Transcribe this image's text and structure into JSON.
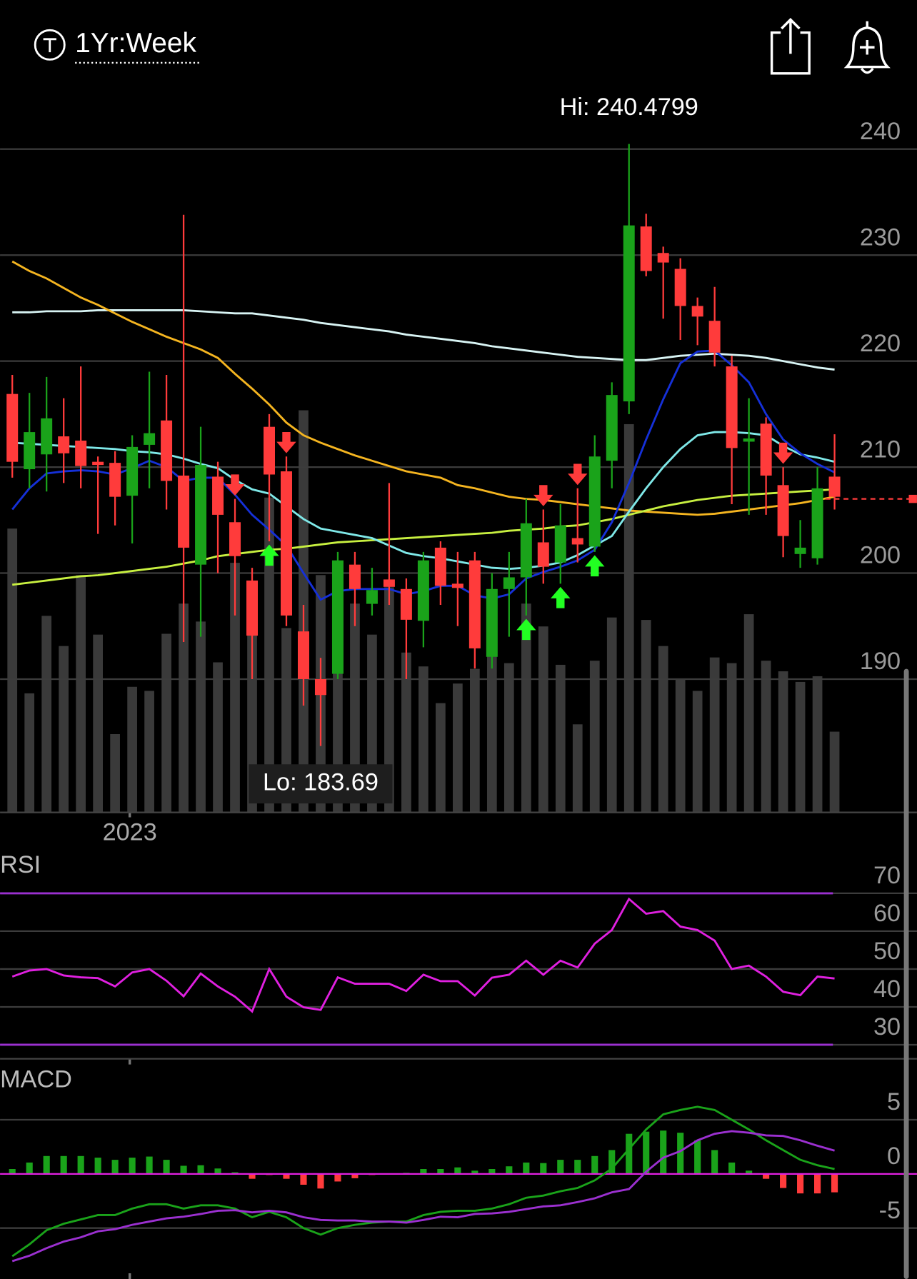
{
  "header": {
    "title": "1Yr:Week"
  },
  "chart_data": [
    {
      "type": "candlestick",
      "categories": [
        null,
        null,
        null,
        null,
        null,
        null,
        null,
        "2023",
        null,
        null,
        null,
        null,
        null,
        null,
        null,
        null,
        null,
        null,
        null,
        null,
        null,
        null,
        null,
        null,
        null,
        null,
        null,
        null,
        null,
        null,
        null,
        null,
        null,
        null,
        null,
        null,
        null,
        null,
        null,
        null,
        null,
        null,
        null,
        null,
        null,
        null,
        null,
        null,
        null
      ],
      "open": [
        216.9,
        209.8,
        211.2,
        212.9,
        212.5,
        210.5,
        210.4,
        207.3,
        212.1,
        214.4,
        209.2,
        200.8,
        209.1,
        204.8,
        199.3,
        213.8,
        209.6,
        194.5,
        190,
        190.5,
        200.8,
        197.1,
        199.4,
        198.5,
        195.5,
        202.4,
        199,
        201.2,
        192.1,
        198.5,
        199.6,
        202.9,
        201,
        203.3,
        202.5,
        210.6,
        216.2,
        232.7,
        230.2,
        228.7,
        225.2,
        223.8,
        219.5,
        212.4,
        214.1,
        208.3,
        201.8,
        201.4,
        209.1
      ],
      "high": [
        218.7,
        217,
        218.5,
        216.5,
        219.5,
        211,
        211.5,
        213,
        219,
        218.7,
        233.8,
        213.8,
        210.5,
        207,
        200.5,
        215,
        211,
        197,
        192,
        202,
        202,
        200.5,
        208.5,
        199.5,
        202,
        203,
        202,
        202,
        200,
        202,
        207,
        206,
        206.5,
        208,
        213,
        218,
        240.4799,
        233.9,
        230.8,
        229.7,
        226,
        227,
        220.5,
        216.5,
        214.7,
        210,
        205,
        210,
        213.1
      ],
      "low": [
        209,
        208,
        207.7,
        208.5,
        208,
        203.7,
        204.5,
        202.8,
        208,
        206,
        193.5,
        194,
        200,
        196,
        190,
        203,
        195,
        187.5,
        183.69,
        190,
        195,
        196,
        197,
        190,
        193,
        197,
        195,
        191,
        191,
        194,
        196,
        199,
        199,
        201,
        202,
        208,
        215,
        228,
        224,
        222,
        221.5,
        219.5,
        206.5,
        205.5,
        205.5,
        201.5,
        200.5,
        200.8,
        206
      ],
      "close": [
        210.5,
        213.3,
        214.6,
        211.3,
        210.1,
        210.2,
        207.2,
        211.9,
        213.2,
        208.7,
        202.4,
        210.2,
        205.5,
        201.6,
        194.1,
        209.3,
        196,
        190,
        188.5,
        201.2,
        198.5,
        198.4,
        198.7,
        195.6,
        201.2,
        198.8,
        198.6,
        192.9,
        198.5,
        199.6,
        204.7,
        200.6,
        204.5,
        202.7,
        211,
        216.8,
        232.8,
        228.5,
        229.3,
        225.2,
        224.2,
        220.8,
        211.8,
        212.7,
        209.2,
        203.5,
        202.4,
        208,
        207.2
      ],
      "up_color": "#1aa31a",
      "down_color": "#ff3b3b",
      "series": [
        {
          "color": "#d8f4f4",
          "values": [
            224.6,
            224.6,
            224.7,
            224.7,
            224.7,
            224.8,
            224.8,
            224.8,
            224.8,
            224.8,
            224.8,
            224.7,
            224.6,
            224.5,
            224.5,
            224.3,
            224.1,
            223.9,
            223.6,
            223.4,
            223.2,
            223.0,
            222.8,
            222.5,
            222.3,
            222.1,
            221.9,
            221.7,
            221.4,
            221.2,
            221.0,
            220.8,
            220.6,
            220.4,
            220.3,
            220.2,
            220.1,
            220.1,
            220.3,
            220.5,
            220.6,
            220.7,
            220.6,
            220.5,
            220.3,
            220.0,
            219.7,
            219.4,
            219.2
          ]
        },
        {
          "color": "#f5b520",
          "values": [
            229.4,
            228.5,
            227.8,
            226.9,
            226,
            225.3,
            224.5,
            223.7,
            223,
            222.3,
            221.7,
            221.1,
            220.3,
            218.8,
            217.4,
            215.9,
            214.2,
            213,
            212.3,
            211.7,
            211.1,
            210.6,
            210.1,
            209.6,
            209.3,
            209,
            208.3,
            208,
            207.6,
            207.2,
            207,
            206.9,
            206.7,
            206.5,
            206.3,
            206.1,
            205.9,
            205.8,
            205.7,
            205.6,
            205.5,
            205.6,
            205.8,
            206,
            206.2,
            206.4,
            206.6,
            206.9,
            207.2
          ]
        },
        {
          "color": "#c8f040",
          "values": [
            198.9,
            199.1,
            199.3,
            199.5,
            199.7,
            199.8,
            200.0,
            200.2,
            200.4,
            200.6,
            200.9,
            201.2,
            201.6,
            201.8,
            202.0,
            202.2,
            202.3,
            202.5,
            202.7,
            202.9,
            203.0,
            203.1,
            203.2,
            203.3,
            203.4,
            203.5,
            203.6,
            203.7,
            203.8,
            204.0,
            204.1,
            204.2,
            204.4,
            204.5,
            204.8,
            205.1,
            205.5,
            205.9,
            206.3,
            206.6,
            206.9,
            207.1,
            207.3,
            207.4,
            207.5,
            207.6,
            207.7,
            207.8,
            207.9
          ]
        },
        {
          "color": "#7fe8e8",
          "values": [
            212.3,
            212.2,
            212.1,
            212.0,
            211.9,
            211.8,
            211.7,
            211.5,
            211.4,
            211.2,
            210.8,
            210.3,
            209.9,
            208.8,
            207.9,
            207.5,
            206.3,
            205.1,
            204.2,
            203.9,
            203.6,
            203.3,
            202.6,
            201.9,
            201.6,
            201.4,
            201.1,
            200.8,
            200.5,
            200.4,
            200.5,
            200.7,
            201.0,
            201.7,
            202.6,
            203.5,
            205.8,
            208.0,
            210.0,
            211.7,
            213.0,
            213.3,
            213.3,
            213.2,
            213.0,
            212.0,
            211.2,
            210.9,
            210.5
          ]
        },
        {
          "color": "#1530d8",
          "values": [
            206,
            208,
            209.4,
            209.6,
            209.7,
            209.6,
            209.3,
            209.9,
            210.6,
            210.0,
            208.7,
            209,
            209,
            207.4,
            205.5,
            204.1,
            202.6,
            200,
            197.5,
            198.3,
            198.5,
            198.5,
            198.5,
            198,
            198.3,
            198.8,
            198.8,
            197.9,
            197.6,
            198,
            199.5,
            200.1,
            200.6,
            201.2,
            202.2,
            204.8,
            208.5,
            212.6,
            216.4,
            219.8,
            220.9,
            221,
            219.6,
            218,
            215,
            212.6,
            211.3,
            210.3,
            209.5
          ]
        }
      ],
      "volume": [
        347,
        145,
        240,
        203,
        290,
        217,
        95,
        153,
        148,
        218,
        255,
        233,
        183,
        305,
        275,
        385,
        225,
        492,
        290,
        185,
        255,
        217,
        275,
        195,
        178,
        133,
        157,
        175,
        200,
        182,
        255,
        227,
        180,
        107,
        185,
        238,
        475,
        235,
        203,
        162,
        148,
        189,
        182,
        242,
        185,
        172,
        159,
        166,
        98
      ],
      "vlim": [
        0,
        500
      ],
      "volume_color": "#3a3a3a",
      "ylim": [
        177.5,
        245.6
      ],
      "yticks": [
        190,
        200,
        210,
        220,
        230,
        240
      ],
      "grid": true,
      "high_label": "Hi: 240.4799",
      "low_label": "Lo: 183.69",
      "last_price": 207,
      "buy_signals": [
        15,
        30,
        32,
        34
      ],
      "sell_signals": [
        13,
        16,
        31,
        33,
        45
      ]
    },
    {
      "type": "line",
      "title": "RSI",
      "values": [
        48,
        49.6,
        50,
        48.3,
        47.8,
        47.6,
        45.4,
        49.1,
        50,
        46.9,
        42.8,
        48.8,
        45.4,
        42.7,
        38.8,
        50,
        42.7,
        39.9,
        39.2,
        47.8,
        46.1,
        46.1,
        46.1,
        44.2,
        48.5,
        46.8,
        46.8,
        43,
        47.7,
        48.5,
        52.2,
        48.5,
        52.2,
        50.4,
        56.7,
        60.3,
        68.5,
        64.6,
        65.3,
        61.2,
        60.3,
        57.5,
        50,
        50.9,
        48,
        44,
        43.1,
        48,
        47.5
      ],
      "color": "#e020e0",
      "ylim": [
        26.3,
        80.8
      ],
      "yticks": [
        30,
        40,
        50,
        60,
        70
      ],
      "bands": [
        30,
        70
      ],
      "band_color": "#9b30d0"
    },
    {
      "type": "macd",
      "title": "MACD",
      "macd": [
        -7.6,
        -6.5,
        -5.2,
        -4.6,
        -4.2,
        -3.8,
        -3.8,
        -3.2,
        -2.8,
        -2.8,
        -3.2,
        -2.9,
        -2.9,
        -3.2,
        -4,
        -3.5,
        -4,
        -5,
        -5.6,
        -5,
        -4.7,
        -4.5,
        -4.4,
        -4.4,
        -3.8,
        -3.5,
        -3.4,
        -3.4,
        -3.2,
        -2.8,
        -2.2,
        -2,
        -1.6,
        -1.3,
        -0.6,
        0.5,
        2.3,
        4.1,
        5.5,
        5.9,
        6.2,
        5.9,
        5,
        4.1,
        3.1,
        2.2,
        1.3,
        0.8,
        0.45
      ],
      "signal": [
        -8.05,
        -7.55,
        -6.85,
        -6.25,
        -5.85,
        -5.3,
        -5.1,
        -4.7,
        -4.4,
        -4.1,
        -3.95,
        -3.7,
        -3.4,
        -3.35,
        -3.55,
        -3.4,
        -3.55,
        -4,
        -4.25,
        -4.3,
        -4.3,
        -4.4,
        -4.4,
        -4.5,
        -4.25,
        -3.95,
        -4,
        -3.7,
        -3.65,
        -3.5,
        -3.25,
        -3,
        -2.9,
        -2.6,
        -2.25,
        -1.7,
        -1.4,
        0.2,
        1.5,
        2.1,
        3.1,
        3.7,
        3.95,
        3.8,
        3.55,
        3.5,
        3.1,
        2.6,
        2.15
      ],
      "histogram": [
        0.45,
        1.05,
        1.65,
        1.65,
        1.65,
        1.5,
        1.3,
        1.5,
        1.6,
        1.3,
        0.75,
        0.8,
        0.5,
        0.15,
        -0.45,
        -0.1,
        -0.45,
        -1,
        -1.35,
        -0.7,
        -0.4,
        -0.1,
        0,
        0.1,
        0.45,
        0.45,
        0.6,
        0.3,
        0.45,
        0.7,
        1.05,
        1,
        1.3,
        1.3,
        1.65,
        2.2,
        3.7,
        3.9,
        4,
        3.8,
        3.1,
        2.2,
        1.05,
        0.3,
        -0.45,
        -1.3,
        -1.8,
        -1.8,
        -1.7
      ],
      "macd_color": "#1aa31a",
      "signal_color": "#9b30d0",
      "up_color": "#1aa31a",
      "down_color": "#ff3b3b",
      "zero_color": "#e020e0",
      "ylim": [
        -9.7,
        10.1
      ],
      "yticks": [
        -5,
        0,
        5
      ]
    }
  ]
}
